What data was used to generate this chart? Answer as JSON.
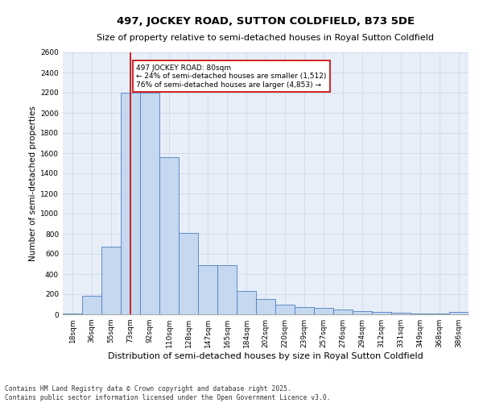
{
  "title": "497, JOCKEY ROAD, SUTTON COLDFIELD, B73 5DE",
  "subtitle": "Size of property relative to semi-detached houses in Royal Sutton Coldfield",
  "xlabel": "Distribution of semi-detached houses by size in Royal Sutton Coldfield",
  "ylabel": "Number of semi-detached properties",
  "categories": [
    "18sqm",
    "36sqm",
    "55sqm",
    "73sqm",
    "92sqm",
    "110sqm",
    "128sqm",
    "147sqm",
    "165sqm",
    "184sqm",
    "202sqm",
    "220sqm",
    "239sqm",
    "257sqm",
    "276sqm",
    "294sqm",
    "312sqm",
    "331sqm",
    "349sqm",
    "368sqm",
    "386sqm"
  ],
  "values": [
    10,
    185,
    670,
    2200,
    2200,
    1560,
    810,
    490,
    490,
    235,
    155,
    95,
    75,
    65,
    50,
    35,
    25,
    15,
    8,
    5,
    25
  ],
  "bar_color": "#c5d8f0",
  "bar_edge_color": "#4d7ebf",
  "grid_color": "#ccd8ea",
  "bg_color": "#e8eef8",
  "vline_x": 3,
  "vline_color": "#cc0000",
  "annotation_text": "497 JOCKEY ROAD: 80sqm\n← 24% of semi-detached houses are smaller (1,512)\n76% of semi-detached houses are larger (4,853) →",
  "annotation_box_color": "#cc0000",
  "ylim": [
    0,
    2600
  ],
  "yticks": [
    0,
    200,
    400,
    600,
    800,
    1000,
    1200,
    1400,
    1600,
    1800,
    2000,
    2200,
    2400,
    2600
  ],
  "footnote": "Contains HM Land Registry data © Crown copyright and database right 2025.\nContains public sector information licensed under the Open Government Licence v3.0.",
  "title_fontsize": 9.5,
  "subtitle_fontsize": 8,
  "xlabel_fontsize": 8,
  "ylabel_fontsize": 7.5,
  "tick_fontsize": 6.5,
  "footnote_fontsize": 5.8,
  "annotation_fontsize": 6.5
}
